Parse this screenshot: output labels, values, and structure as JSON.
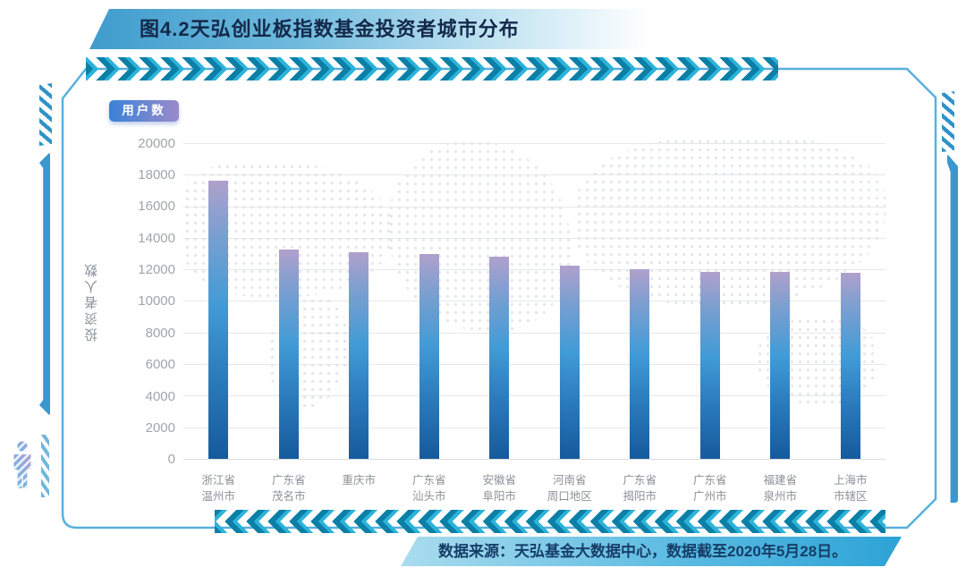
{
  "title_banner": {
    "text": "图4.2天弘创业板指数基金投资者城市分布"
  },
  "footer": {
    "text": "数据来源：天弘基金大数据中心，数据截至2020年5月28日。"
  },
  "chart_data": {
    "type": "bar",
    "title": "图4.2天弘创业板指数基金投资者城市分布",
    "xlabel": "",
    "ylabel": "投资者人数",
    "ylim": [
      0,
      20000
    ],
    "yticks": [
      20000,
      18000,
      16000,
      14000,
      12000,
      10000,
      8000,
      6000,
      4000,
      2000,
      0
    ],
    "grid": true,
    "legend_position": "top-left",
    "categories": [
      "浙江省\n温州市",
      "广东省\n茂名市",
      "重庆市",
      "广东省\n汕头市",
      "安徽省\n阜阳市",
      "河南省\n周口地区",
      "广东省\n揭阳市",
      "广东省\n广州市",
      "福建省\n泉州市",
      "上海市\n市辖区"
    ],
    "series": [
      {
        "name": "用户数",
        "values": [
          17600,
          13250,
          13100,
          12950,
          12800,
          12250,
          12000,
          11850,
          11850,
          11800
        ]
      }
    ],
    "annotations": []
  },
  "colors": {
    "accent_blue": "#2da3d6",
    "frame_border": "#58b0dc",
    "chevron_dark": "#0b7fa6",
    "chevron_bright": "#2cb3da",
    "bar_gradient_top": "#b0a0cc",
    "bar_gradient_mid": "#419bd6",
    "bar_gradient_bottom": "#155a9c",
    "legend_gradient_left": "#3b82d8",
    "legend_gradient_right": "#9a8bca",
    "title_text": "#14294a",
    "footer_text": "#163e68",
    "axis_text": "#a0a5ab",
    "gridline": "#e6e7e9"
  },
  "icons": {
    "person_icon": "striped person silhouette",
    "chevron_band": "repeated arrow chevrons"
  }
}
